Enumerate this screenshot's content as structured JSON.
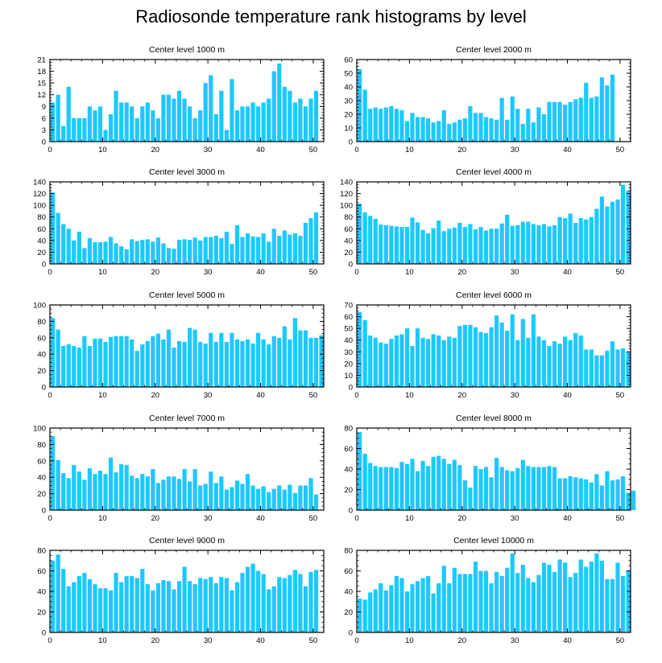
{
  "title": "Radiosonde temperature rank histograms by level",
  "colors": {
    "bar": "#1ec8ff",
    "axis": "#000000"
  },
  "chart_data": [
    {
      "type": "bar",
      "title": "Center level 1000 m",
      "x_start": 0,
      "ylim": [
        0,
        21
      ],
      "yticks": [
        0,
        3,
        6,
        9,
        12,
        15,
        18,
        21
      ],
      "xticks": [
        0,
        10,
        20,
        30,
        40,
        50
      ],
      "values": [
        10,
        12,
        4,
        14,
        6,
        6,
        6,
        9,
        8,
        9,
        3,
        7,
        13,
        10,
        10,
        9,
        6,
        9,
        10,
        8,
        6,
        12,
        12,
        11,
        13,
        11,
        9,
        6,
        8,
        15,
        17,
        7,
        13,
        3,
        16,
        8,
        9,
        9,
        10,
        9,
        10,
        11,
        18,
        20,
        14,
        13,
        10,
        11,
        9,
        11,
        13
      ]
    },
    {
      "type": "bar",
      "title": "Center level 2000 m",
      "x_start": 0,
      "ylim": [
        0,
        60
      ],
      "yticks": [
        0,
        10,
        20,
        30,
        40,
        50,
        60
      ],
      "xticks": [
        0,
        10,
        20,
        30,
        40,
        50
      ],
      "values": [
        53,
        38,
        24,
        25,
        24,
        25,
        26,
        24,
        23,
        15,
        21,
        18,
        18,
        17,
        14,
        15,
        23,
        13,
        14,
        16,
        17,
        26,
        21,
        21,
        18,
        17,
        16,
        32,
        16,
        33,
        24,
        13,
        24,
        14,
        25,
        20,
        29,
        29,
        29,
        27,
        29,
        31,
        32,
        43,
        32,
        33,
        47,
        41,
        49
      ]
    },
    {
      "type": "bar",
      "title": "Center level 3000 m",
      "x_start": 0,
      "ylim": [
        0,
        140
      ],
      "yticks": [
        0,
        20,
        40,
        60,
        80,
        100,
        120,
        140
      ],
      "xticks": [
        0,
        10,
        20,
        30,
        40,
        50
      ],
      "values": [
        122,
        87,
        68,
        60,
        40,
        55,
        27,
        44,
        37,
        37,
        38,
        46,
        35,
        30,
        25,
        42,
        39,
        41,
        42,
        38,
        45,
        35,
        27,
        26,
        41,
        42,
        41,
        45,
        40,
        46,
        46,
        48,
        44,
        55,
        34,
        66,
        46,
        52,
        47,
        46,
        52,
        38,
        60,
        48,
        57,
        50,
        52,
        48,
        70,
        78,
        88
      ]
    },
    {
      "type": "bar",
      "title": "Center level 4000 m",
      "x_start": 0,
      "ylim": [
        0,
        140
      ],
      "yticks": [
        0,
        20,
        40,
        60,
        80,
        100,
        120,
        140
      ],
      "xticks": [
        0,
        10,
        20,
        30,
        40,
        50
      ],
      "values": [
        103,
        88,
        82,
        77,
        67,
        66,
        65,
        64,
        63,
        63,
        79,
        71,
        58,
        52,
        61,
        74,
        56,
        60,
        62,
        70,
        63,
        68,
        59,
        63,
        57,
        60,
        60,
        69,
        84,
        65,
        66,
        72,
        72,
        68,
        66,
        68,
        64,
        66,
        80,
        78,
        86,
        70,
        78,
        76,
        80,
        94,
        115,
        98,
        106,
        110,
        135,
        125
      ]
    },
    {
      "type": "bar",
      "title": "Center level 5000 m",
      "x_start": 0,
      "ylim": [
        0,
        100
      ],
      "yticks": [
        0,
        20,
        40,
        60,
        80,
        100
      ],
      "xticks": [
        0,
        10,
        20,
        30,
        40,
        50
      ],
      "values": [
        84,
        70,
        50,
        52,
        50,
        48,
        62,
        50,
        59,
        59,
        55,
        61,
        62,
        62,
        62,
        58,
        44,
        52,
        56,
        62,
        65,
        58,
        70,
        48,
        56,
        55,
        72,
        70,
        55,
        53,
        66,
        55,
        66,
        55,
        66,
        58,
        56,
        58,
        53,
        66,
        58,
        52,
        62,
        60,
        74,
        58,
        84,
        69,
        69,
        60,
        60,
        63
      ]
    },
    {
      "type": "bar",
      "title": "Center level 6000 m",
      "x_start": 0,
      "ylim": [
        0,
        70
      ],
      "yticks": [
        0,
        10,
        20,
        30,
        40,
        50,
        60,
        70
      ],
      "xticks": [
        0,
        10,
        20,
        30,
        40,
        50
      ],
      "values": [
        64,
        57,
        44,
        42,
        38,
        37,
        41,
        44,
        45,
        50,
        35,
        50,
        42,
        41,
        45,
        44,
        40,
        43,
        42,
        52,
        53,
        53,
        51,
        47,
        46,
        51,
        61,
        55,
        48,
        62,
        40,
        58,
        42,
        62,
        43,
        40,
        35,
        39,
        37,
        43,
        40,
        46,
        44,
        32,
        32,
        27,
        27,
        31,
        39,
        32,
        33,
        30
      ]
    },
    {
      "type": "bar",
      "title": "Center level 7000 m",
      "x_start": 0,
      "ylim": [
        0,
        100
      ],
      "yticks": [
        0,
        20,
        40,
        60,
        80,
        100
      ],
      "xticks": [
        0,
        10,
        20,
        30,
        40,
        50
      ],
      "values": [
        90,
        61,
        45,
        39,
        55,
        47,
        37,
        51,
        44,
        48,
        44,
        64,
        46,
        56,
        55,
        42,
        39,
        44,
        41,
        50,
        33,
        37,
        41,
        41,
        38,
        50,
        35,
        50,
        30,
        32,
        47,
        33,
        41,
        25,
        28,
        36,
        32,
        44,
        30,
        26,
        29,
        22,
        26,
        30,
        25,
        31,
        21,
        30,
        30,
        39,
        19
      ]
    },
    {
      "type": "bar",
      "title": "Center level 8000 m",
      "x_start": 0,
      "ylim": [
        0,
        80
      ],
      "yticks": [
        0,
        20,
        40,
        60,
        80
      ],
      "xticks": [
        0,
        10,
        20,
        30,
        40,
        50
      ],
      "values": [
        76,
        55,
        46,
        43,
        42,
        42,
        42,
        41,
        47,
        45,
        50,
        38,
        48,
        43,
        52,
        53,
        50,
        45,
        49,
        44,
        29,
        22,
        43,
        40,
        42,
        32,
        51,
        42,
        39,
        38,
        41,
        49,
        43,
        42,
        42,
        42,
        43,
        42,
        31,
        31,
        33,
        32,
        31,
        30,
        27,
        35,
        24,
        38,
        29,
        30,
        33,
        17,
        19
      ]
    },
    {
      "type": "bar",
      "title": "Center level 9000 m",
      "x_start": 0,
      "ylim": [
        0,
        80
      ],
      "yticks": [
        0,
        20,
        40,
        60,
        80
      ],
      "xticks": [
        0,
        10,
        20,
        30,
        40,
        50
      ],
      "values": [
        70,
        76,
        62,
        45,
        49,
        55,
        58,
        52,
        47,
        43,
        43,
        41,
        58,
        49,
        55,
        55,
        53,
        62,
        47,
        41,
        48,
        51,
        50,
        42,
        50,
        64,
        50,
        47,
        53,
        52,
        54,
        48,
        54,
        53,
        41,
        49,
        58,
        64,
        67,
        60,
        57,
        42,
        45,
        54,
        53,
        56,
        61,
        57,
        45,
        59,
        61
      ]
    },
    {
      "type": "bar",
      "title": "Center level 10000 m",
      "x_start": 0,
      "ylim": [
        0,
        80
      ],
      "yticks": [
        0,
        20,
        40,
        60,
        80
      ],
      "xticks": [
        0,
        10,
        20,
        30,
        40,
        50
      ],
      "values": [
        33,
        32,
        39,
        42,
        48,
        41,
        46,
        55,
        53,
        40,
        47,
        50,
        53,
        55,
        38,
        48,
        65,
        48,
        63,
        57,
        57,
        57,
        69,
        60,
        60,
        48,
        59,
        55,
        63,
        77,
        58,
        66,
        53,
        49,
        56,
        68,
        66,
        59,
        71,
        68,
        54,
        58,
        71,
        64,
        69,
        77,
        70,
        52,
        52,
        68,
        55,
        60
      ]
    }
  ]
}
